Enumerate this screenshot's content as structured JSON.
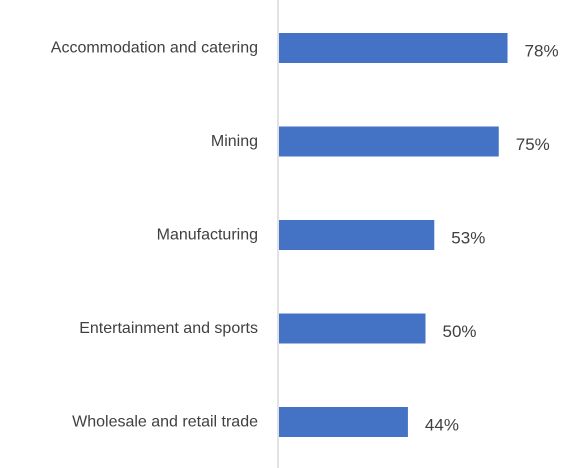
{
  "chart_data": {
    "type": "bar",
    "orientation": "horizontal",
    "categories": [
      "Accommodation and catering",
      "Mining",
      "Manufacturing",
      "Entertainment and sports",
      "Wholesale and retail trade"
    ],
    "values": [
      78,
      75,
      53,
      50,
      44
    ],
    "value_labels": [
      "78%",
      "75%",
      "53%",
      "50%",
      "44%"
    ],
    "xlim": [
      0,
      100
    ],
    "grid": false,
    "legend": "none",
    "bar_color": "#4472C4",
    "axis_color": "#D9D9D9",
    "text_color": "#404040"
  }
}
